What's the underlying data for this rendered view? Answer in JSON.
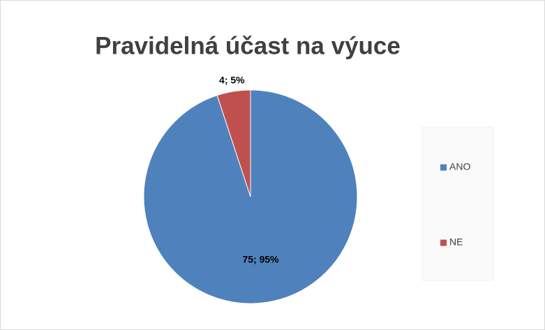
{
  "chart_data": {
    "type": "pie",
    "title": "Pravidelná účast na výuce",
    "categories": [
      "ANO",
      "NE"
    ],
    "values": [
      75,
      4
    ],
    "value_labels": [
      "75; 95%",
      "4; 5%"
    ],
    "colors": [
      "#4f81bd",
      "#c0504d"
    ],
    "legend": "right"
  }
}
